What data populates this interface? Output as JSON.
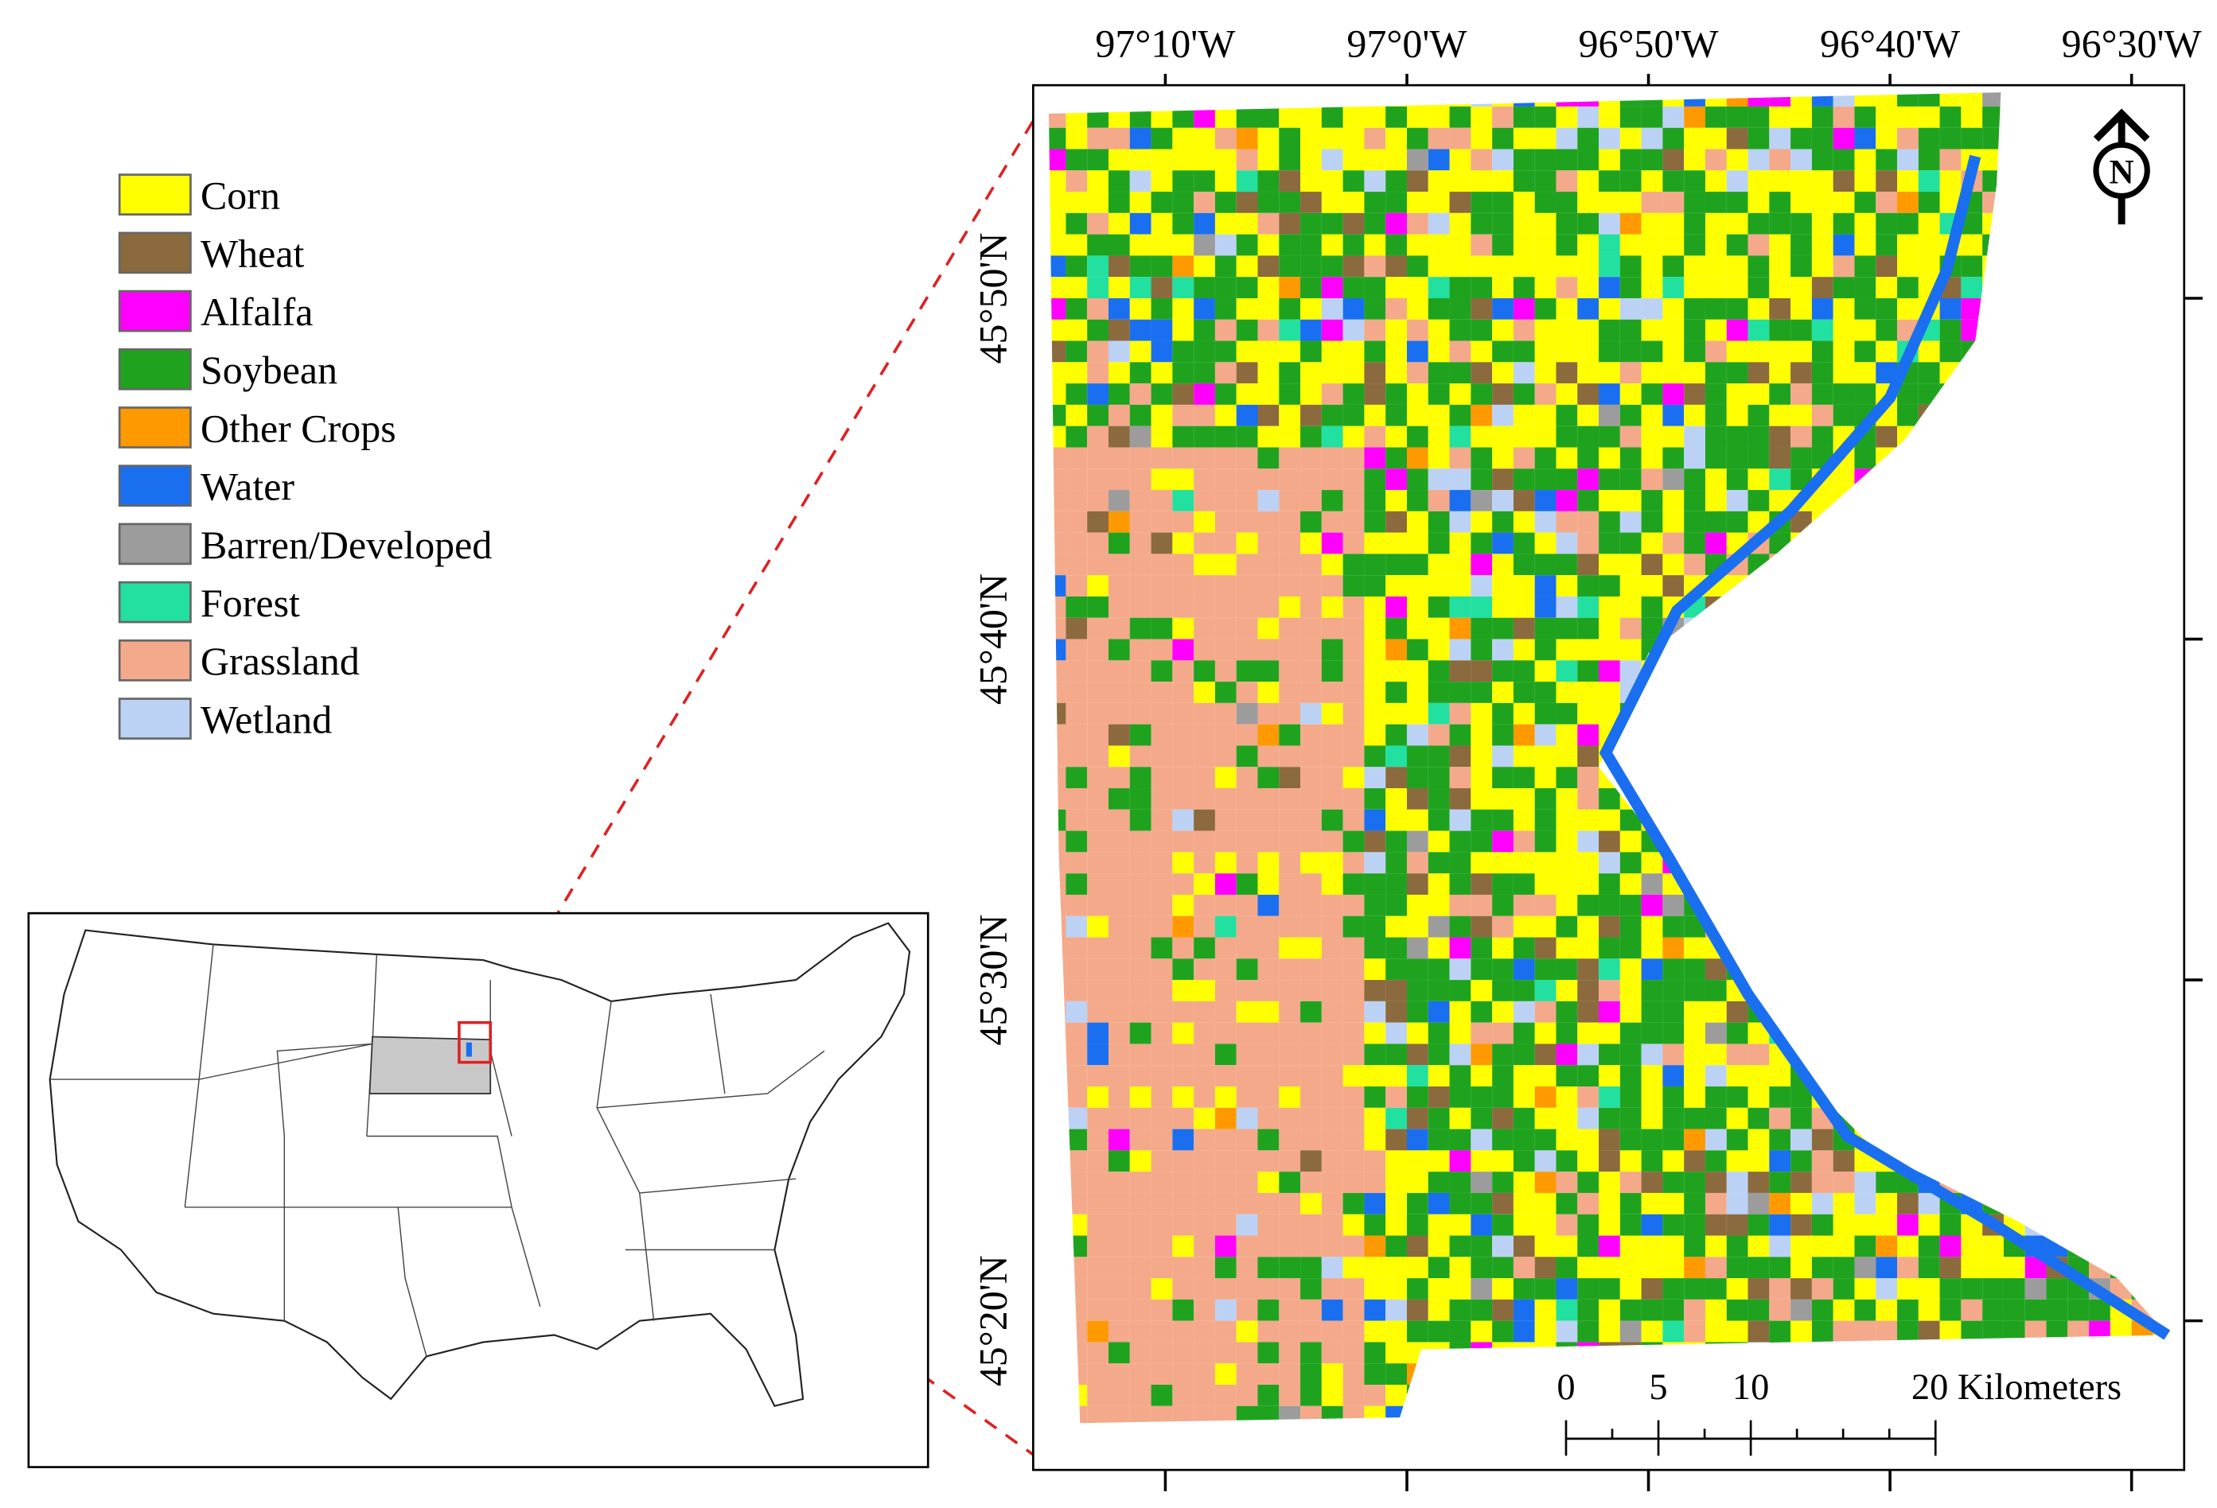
{
  "legend": [
    {
      "label": "Corn",
      "color": "#ffff00"
    },
    {
      "label": "Wheat",
      "color": "#8b6a3e"
    },
    {
      "label": "Alfalfa",
      "color": "#ff00ff"
    },
    {
      "label": "Soybean",
      "color": "#1fa31f"
    },
    {
      "label": "Other Crops",
      "color": "#ff9900"
    },
    {
      "label": "Water",
      "color": "#1a6ff0"
    },
    {
      "label": "Barren/Developed",
      "color": "#9c9c9c"
    },
    {
      "label": "Forest",
      "color": "#22e0a0"
    },
    {
      "label": "Grassland",
      "color": "#f4a98a"
    },
    {
      "label": "Wetland",
      "color": "#bcd2f4"
    }
  ],
  "longitude_labels": [
    "97°10'W",
    "97°0'W",
    "96°50'W",
    "96°40'W",
    "96°30'W"
  ],
  "latitude_labels": [
    "45°50'N",
    "45°40'N",
    "45°30'N",
    "45°20'N"
  ],
  "scale_bar": {
    "labels": [
      "0",
      "5",
      "10",
      "20 Kilometers"
    ]
  },
  "north_arrow": "N"
}
